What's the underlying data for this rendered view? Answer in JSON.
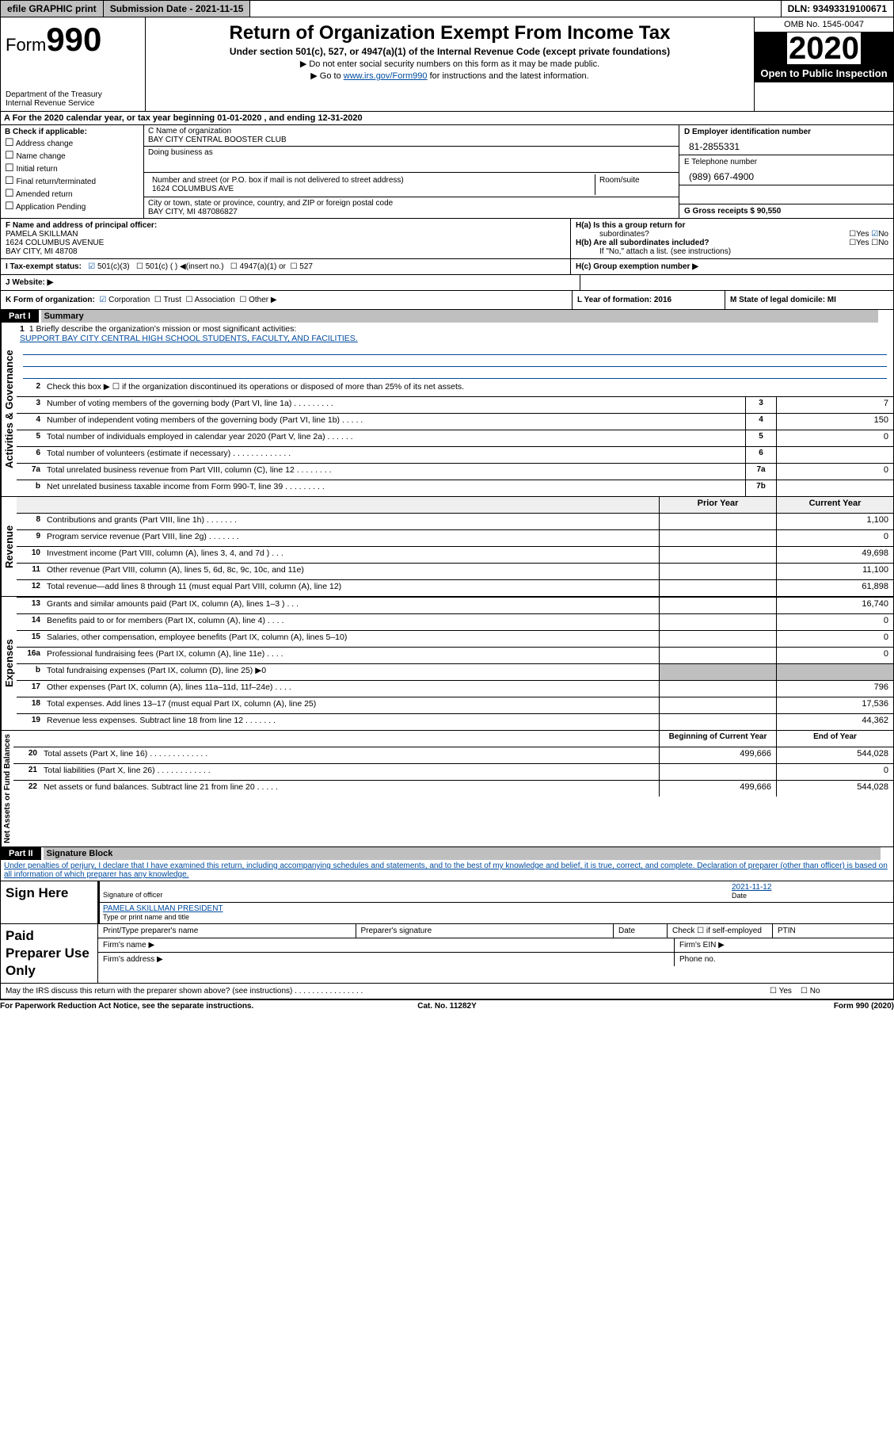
{
  "topbar": {
    "efile": "efile GRAPHIC print",
    "subdate_lbl": "Submission Date - 2021-11-15",
    "dln": "DLN: 93493319100671"
  },
  "header": {
    "form_prefix": "Form",
    "form_num": "990",
    "dept": "Department of the Treasury\nInternal Revenue Service",
    "title": "Return of Organization Exempt From Income Tax",
    "subtitle": "Under section 501(c), 527, or 4947(a)(1) of the Internal Revenue Code (except private foundations)",
    "note1": "▶ Do not enter social security numbers on this form as it may be made public.",
    "note2_pre": "▶ Go to ",
    "note2_link": "www.irs.gov/Form990",
    "note2_post": " for instructions and the latest information.",
    "omb": "OMB No. 1545-0047",
    "year": "2020",
    "public": "Open to Public Inspection"
  },
  "taxyear": "A    For the 2020 calendar year, or tax year beginning 01-01-2020    , and ending 12-31-2020",
  "boxB": {
    "lbl": "B Check if applicable:",
    "opts": [
      "Address change",
      "Name change",
      "Initial return",
      "Final return/terminated",
      "Amended return",
      "Application Pending"
    ]
  },
  "boxC": {
    "name_lbl": "C Name of organization",
    "name_val": "BAY CITY CENTRAL BOOSTER CLUB",
    "dba_lbl": "Doing business as",
    "addr_lbl": "Number and street (or P.O. box if mail is not delivered to street address)",
    "room_lbl": "Room/suite",
    "addr_val": "1624 COLUMBUS AVE",
    "city_lbl": "City or town, state or province, country, and ZIP or foreign postal code",
    "city_val": "BAY CITY, MI  487086827"
  },
  "boxD": {
    "d_lbl": "D Employer identification number",
    "d_val": "81-2855331",
    "e_lbl": "E Telephone number",
    "e_val": "(989) 667-4900",
    "g_lbl": "G Gross receipts $ 90,550"
  },
  "boxF": {
    "f_lbl": "F  Name and address of principal officer:",
    "f_name": "PAMELA SKILLMAN",
    "f_addr1": "1624 COLUMBUS AVENUE",
    "f_addr2": "BAY CITY, MI  48708"
  },
  "boxH": {
    "ha": "H(a)  Is this a group return for",
    "ha2": "subordinates?",
    "hb": "H(b)  Are all subordinates included?",
    "hb2": "If \"No,\" attach a list. (see instructions)",
    "hc": "H(c)  Group exemption number ▶"
  },
  "rowI": {
    "lbl": "I   Tax-exempt status:",
    "o1": "501(c)(3)",
    "o2": "501(c) (  ) ◀(insert no.)",
    "o3": "4947(a)(1) or",
    "o4": "527"
  },
  "rowJ": "J   Website: ▶",
  "rowK": {
    "lbl": "K Form of organization:",
    "corp": "Corporation",
    "trust": "Trust",
    "assoc": "Association",
    "other": "Other ▶",
    "l": "L Year of formation: 2016",
    "m": "M State of legal domicile: MI"
  },
  "part1": {
    "hdr": "Part I",
    "title": "Summary",
    "q1": "1  Briefly describe the organization's mission or most significant activities:",
    "q1v": "SUPPORT BAY CITY CENTRAL HIGH SCHOOL STUDENTS, FACULTY, AND FACILITIES.",
    "q2": "Check this box ▶ ☐  if the organization discontinued its operations or disposed of more than 25% of its net assets.",
    "vlabel_ag": "Activities & Governance",
    "vlabel_rev": "Revenue",
    "vlabel_exp": "Expenses",
    "vlabel_net": "Net Assets or Fund Balances",
    "prior": "Prior Year",
    "current": "Current Year",
    "begin": "Beginning of Current Year",
    "end": "End of Year",
    "lines_ag": [
      {
        "n": "3",
        "t": "Number of voting members of the governing body (Part VI, line 1a)  .   .   .   .   .   .   .   .   .",
        "b": "3",
        "v": "7"
      },
      {
        "n": "4",
        "t": "Number of independent voting members of the governing body (Part VI, line 1b)   .   .   .   .   .",
        "b": "4",
        "v": "150"
      },
      {
        "n": "5",
        "t": "Total number of individuals employed in calendar year 2020 (Part V, line 2a)   .   .   .   .   .   .",
        "b": "5",
        "v": "0"
      },
      {
        "n": "6",
        "t": "Total number of volunteers (estimate if necessary)    .   .   .   .   .   .   .   .   .   .   .   .   .",
        "b": "6",
        "v": ""
      },
      {
        "n": "7a",
        "t": "Total unrelated business revenue from Part VIII, column (C), line 12   .   .   .   .   .   .   .   .",
        "b": "7a",
        "v": "0"
      },
      {
        "n": "b",
        "t": "Net unrelated business taxable income from Form 990-T, line 39   .   .   .   .   .   .   .   .   .",
        "b": "7b",
        "v": ""
      }
    ],
    "lines_rev": [
      {
        "n": "8",
        "t": "Contributions and grants (Part VIII, line 1h)   .   .   .   .   .   .   .",
        "p": "",
        "c": "1,100"
      },
      {
        "n": "9",
        "t": "Program service revenue (Part VIII, line 2g)   .   .   .   .   .   .   .",
        "p": "",
        "c": "0"
      },
      {
        "n": "10",
        "t": "Investment income (Part VIII, column (A), lines 3, 4, and 7d )    .   .   .",
        "p": "",
        "c": "49,698"
      },
      {
        "n": "11",
        "t": "Other revenue (Part VIII, column (A), lines 5, 6d, 8c, 9c, 10c, and 11e)",
        "p": "",
        "c": "11,100"
      },
      {
        "n": "12",
        "t": "Total revenue—add lines 8 through 11 (must equal Part VIII, column (A), line 12)",
        "p": "",
        "c": "61,898"
      }
    ],
    "lines_exp": [
      {
        "n": "13",
        "t": "Grants and similar amounts paid (Part IX, column (A), lines 1–3 )   .   .   .",
        "p": "",
        "c": "16,740"
      },
      {
        "n": "14",
        "t": "Benefits paid to or for members (Part IX, column (A), line 4)   .   .   .   .",
        "p": "",
        "c": "0"
      },
      {
        "n": "15",
        "t": "Salaries, other compensation, employee benefits (Part IX, column (A), lines 5–10)",
        "p": "",
        "c": "0"
      },
      {
        "n": "16a",
        "t": "Professional fundraising fees (Part IX, column (A), line 11e)   .   .   .   .",
        "p": "",
        "c": "0"
      },
      {
        "n": "b",
        "t": "Total fundraising expenses (Part IX, column (D), line 25) ▶0",
        "p": "grey",
        "c": "grey"
      },
      {
        "n": "17",
        "t": "Other expenses (Part IX, column (A), lines 11a–11d, 11f–24e)   .   .   .   .",
        "p": "",
        "c": "796"
      },
      {
        "n": "18",
        "t": "Total expenses. Add lines 13–17 (must equal Part IX, column (A), line 25)",
        "p": "",
        "c": "17,536"
      },
      {
        "n": "19",
        "t": "Revenue less expenses. Subtract line 18 from line 12   .   .   .   .   .   .   .",
        "p": "",
        "c": "44,362"
      }
    ],
    "lines_net": [
      {
        "n": "20",
        "t": "Total assets (Part X, line 16)   .   .   .   .   .   .   .   .   .   .   .   .   .",
        "p": "499,666",
        "c": "544,028"
      },
      {
        "n": "21",
        "t": "Total liabilities (Part X, line 26)   .   .   .   .   .   .   .   .   .   .   .   .",
        "p": "",
        "c": "0"
      },
      {
        "n": "22",
        "t": "Net assets or fund balances. Subtract line 21 from line 20   .   .   .   .   .",
        "p": "499,666",
        "c": "544,028"
      }
    ]
  },
  "part2": {
    "hdr": "Part II",
    "title": "Signature Block",
    "decl": "Under penalties of perjury, I declare that I have examined this return, including accompanying schedules and statements, and to the best of my knowledge and belief, it is true, correct, and complete. Declaration of preparer (other than officer) is based on all information of which preparer has any knowledge.",
    "sign_here": "Sign Here",
    "sig_of": "Signature of officer",
    "sig_date": "Date",
    "sig_date_v": "2021-11-12",
    "sig_name": "PAMELA SKILLMAN  PRESIDENT",
    "sig_type": "Type or print name and title",
    "paid": "Paid Preparer Use Only",
    "pt_name": "Print/Type preparer's name",
    "pt_sig": "Preparer's signature",
    "pt_date": "Date",
    "pt_chk": "Check ☐ if self-employed",
    "pt_ptin": "PTIN",
    "fn": "Firm's name    ▶",
    "fe": "Firm's EIN ▶",
    "fa": "Firm's address ▶",
    "ph": "Phone no.",
    "irs_q": "May the IRS discuss this return with the preparer shown above? (see instructions)   .   .   .   .   .   .   .   .   .   .   .   .   .   .   .   .",
    "paperwork": "For Paperwork Reduction Act Notice, see the separate instructions.",
    "cat": "Cat. No. 11282Y",
    "form": "Form 990 (2020)"
  }
}
